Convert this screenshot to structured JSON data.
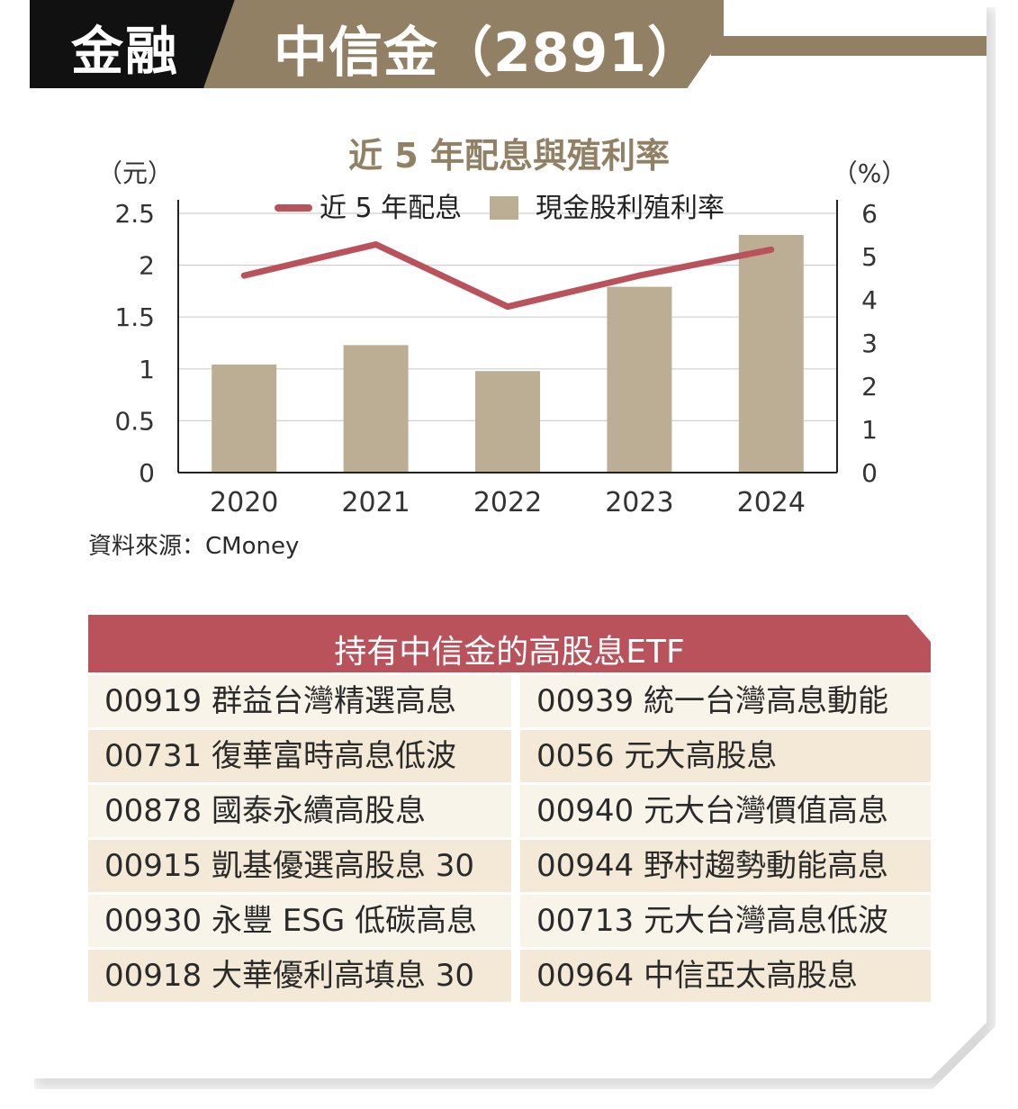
{
  "header": {
    "category": "金融",
    "company": "中信金（2891）"
  },
  "chart_title": "近 5 年配息與殖利率",
  "source": "資料來源：CMoney",
  "colors": {
    "line": "#b9525b",
    "bar": "#bcae94",
    "brand_gold": "#918064",
    "table_header": "#b9525b"
  },
  "chart_data": {
    "type": "bar+line",
    "categories": [
      "2020",
      "2021",
      "2022",
      "2023",
      "2024"
    ],
    "left_axis": {
      "unit": "（元）",
      "min": 0,
      "max": 2.5,
      "ticks": [
        "0",
        "0.5",
        "1",
        "1.5",
        "2",
        "2.5"
      ]
    },
    "right_axis": {
      "unit": "（%）",
      "min": 0,
      "max": 6,
      "ticks": [
        "0",
        "1",
        "2",
        "3",
        "4",
        "5",
        "6"
      ]
    },
    "series": [
      {
        "name": "近 5 年配息",
        "type": "line",
        "axis": "left",
        "values": [
          1.9,
          2.2,
          1.6,
          1.9,
          2.15
        ]
      },
      {
        "name": "現金股利殖利率",
        "type": "bar",
        "axis": "right",
        "values": [
          2.5,
          2.95,
          2.35,
          4.3,
          5.5
        ]
      }
    ],
    "grid": true,
    "legend": "top-center"
  },
  "etf_table": {
    "title": "持有中信金的高股息ETF",
    "left": [
      "00919 群益台灣精選高息",
      "00731 復華富時高息低波",
      "00878 國泰永續高股息",
      "00915 凱基優選高股息 30",
      "00930 永豐 ESG 低碳高息",
      "00918 大華優利高填息 30"
    ],
    "right": [
      "00939 統一台灣高息動能",
      " 0056  元大高股息",
      "00940 元大台灣價值高息",
      "00944 野村趨勢動能高息",
      "00713 元大台灣高息低波",
      "00964 中信亞太高股息"
    ]
  }
}
